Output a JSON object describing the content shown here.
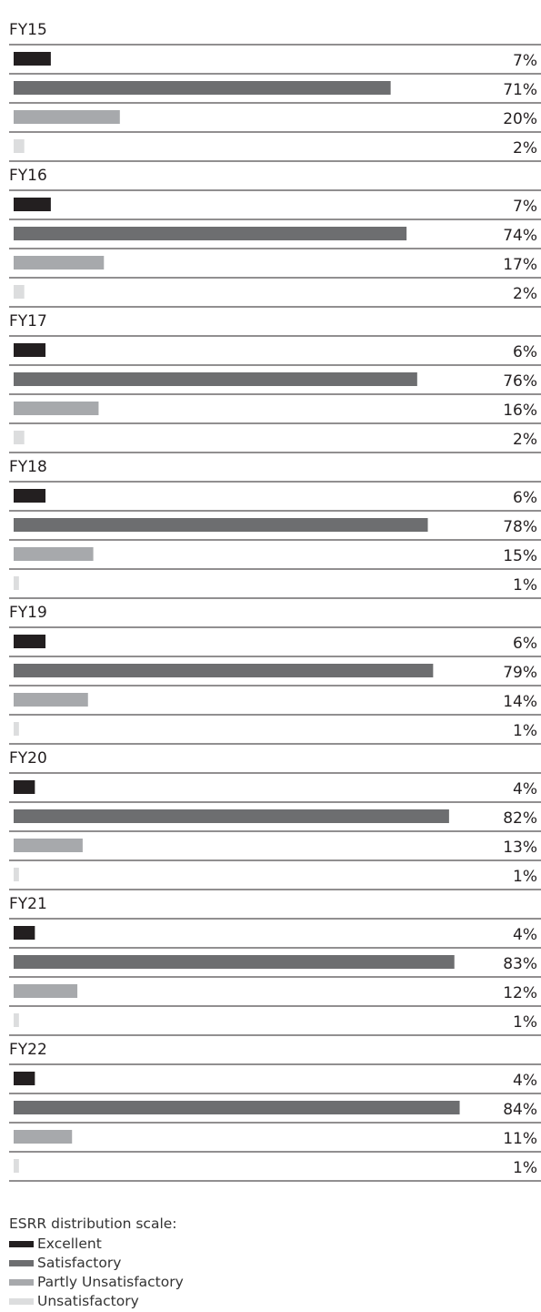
{
  "chart_data": {
    "type": "bar",
    "orientation": "horizontal",
    "groups": [
      {
        "label": "FY15",
        "values": [
          7,
          71,
          20,
          2
        ]
      },
      {
        "label": "FY16",
        "values": [
          7,
          74,
          17,
          2
        ]
      },
      {
        "label": "FY17",
        "values": [
          6,
          76,
          16,
          2
        ]
      },
      {
        "label": "FY18",
        "values": [
          6,
          78,
          15,
          1
        ]
      },
      {
        "label": "FY19",
        "values": [
          6,
          79,
          14,
          1
        ]
      },
      {
        "label": "FY20",
        "values": [
          4,
          82,
          13,
          1
        ]
      },
      {
        "label": "FY21",
        "values": [
          4,
          83,
          12,
          1
        ]
      },
      {
        "label": "FY22",
        "values": [
          4,
          84,
          11,
          1
        ]
      }
    ],
    "value_suffix": "%",
    "series": [
      {
        "name": "Excellent",
        "color": "#231f20"
      },
      {
        "name": "Satisfactory",
        "color": "#6d6e70"
      },
      {
        "name": "Partly Unsatisfactory",
        "color": "#a7a9ac"
      },
      {
        "name": "Unsatisfactory",
        "color": "#dcddde"
      }
    ],
    "x_ticks": [
      "0%",
      "10%",
      "20%",
      "30%",
      "40%",
      "50%",
      "60%",
      "70%",
      "80%",
      "90%"
    ],
    "xlim": [
      0,
      90
    ],
    "grid": false,
    "legend_title": "ESRR distribution scale:",
    "legend_placement": "bottom-left"
  }
}
